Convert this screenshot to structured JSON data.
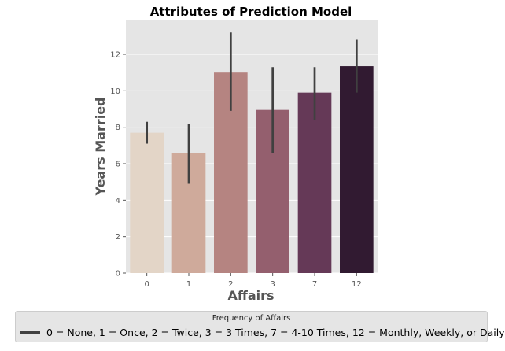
{
  "chart_data": {
    "type": "bar",
    "title": "Attributes of Prediction Model",
    "xlabel": "Affairs",
    "ylabel": "Years Married",
    "categories": [
      "0",
      "1",
      "2",
      "3",
      "7",
      "12"
    ],
    "values": [
      7.7,
      6.6,
      11.0,
      8.95,
      9.9,
      11.35
    ],
    "error_low": [
      7.1,
      4.9,
      8.9,
      6.6,
      8.4,
      9.9
    ],
    "error_high": [
      8.3,
      8.2,
      13.2,
      11.3,
      11.3,
      12.8
    ],
    "colors": [
      "#e3d5c7",
      "#cfaa9b",
      "#b58481",
      "#945f6e",
      "#653957",
      "#311a31"
    ],
    "error_color": "#404040",
    "ylim": [
      0,
      13.9
    ],
    "yticks": [
      0,
      2,
      4,
      6,
      8,
      10,
      12
    ],
    "grid": true,
    "background": "#e5e5e5",
    "legend": {
      "title": "Frequency of Affairs",
      "entries": [
        "0 = None, 1 = Once, 2 = Twice, 3 = 3 Times, 7 = 4-10 Times, 12 = Monthly, Weekly, or Daily"
      ],
      "placement": "bottom"
    }
  }
}
